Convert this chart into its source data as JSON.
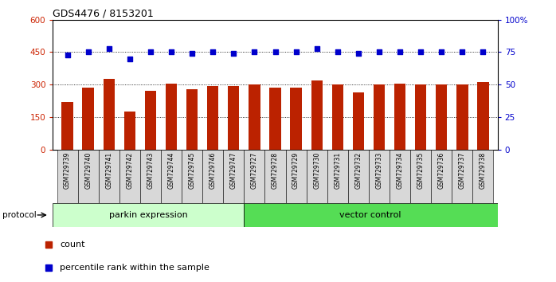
{
  "title": "GDS4476 / 8153201",
  "samples": [
    "GSM729739",
    "GSM729740",
    "GSM729741",
    "GSM729742",
    "GSM729743",
    "GSM729744",
    "GSM729745",
    "GSM729746",
    "GSM729747",
    "GSM729727",
    "GSM729728",
    "GSM729729",
    "GSM729730",
    "GSM729731",
    "GSM729732",
    "GSM729733",
    "GSM729734",
    "GSM729735",
    "GSM729736",
    "GSM729737",
    "GSM729738"
  ],
  "counts": [
    220,
    285,
    325,
    175,
    270,
    305,
    280,
    295,
    295,
    300,
    285,
    285,
    320,
    300,
    265,
    300,
    305,
    300,
    300,
    300,
    310
  ],
  "percentiles": [
    73,
    75,
    78,
    70,
    75,
    75,
    74,
    75,
    74,
    75,
    75,
    75,
    78,
    75,
    74,
    75,
    75,
    75,
    75,
    75,
    75
  ],
  "group1_count": 9,
  "group2_count": 12,
  "group1_label": "parkin expression",
  "group2_label": "vector control",
  "group1_color": "#ccffcc",
  "group2_color": "#55dd55",
  "bar_color": "#bb2200",
  "dot_color": "#0000cc",
  "left_axis_color": "#cc2200",
  "right_axis_color": "#0000cc",
  "ylim_left": [
    0,
    600
  ],
  "ylim_right": [
    0,
    100
  ],
  "yticks_left": [
    0,
    150,
    300,
    450,
    600
  ],
  "ytick_labels_left": [
    "0",
    "150",
    "300",
    "450",
    "600"
  ],
  "yticks_right": [
    0,
    25,
    50,
    75,
    100
  ],
  "ytick_labels_right": [
    "0",
    "25",
    "50",
    "75",
    "100%"
  ],
  "protocol_label": "protocol",
  "legend_count_label": "count",
  "legend_pct_label": "percentile rank within the sample",
  "sample_box_color": "#d8d8d8"
}
